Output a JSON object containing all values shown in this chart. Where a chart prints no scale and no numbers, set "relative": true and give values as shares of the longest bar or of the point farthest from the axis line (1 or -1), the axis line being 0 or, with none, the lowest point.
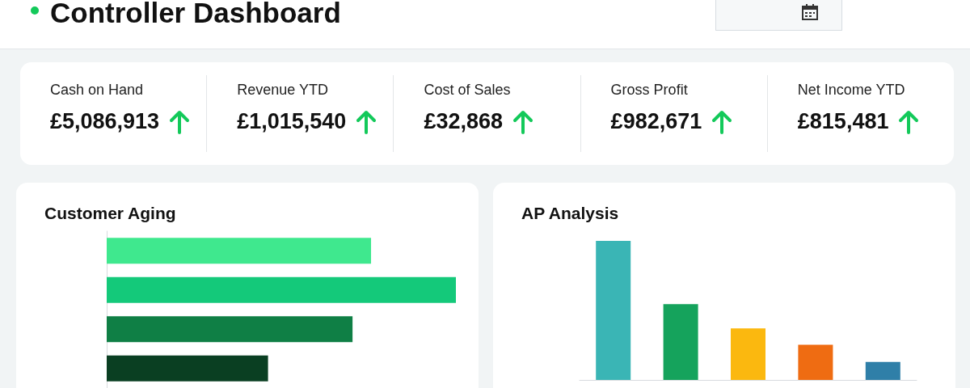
{
  "chart_data": [
    {
      "type": "other",
      "title": "Controller Dashboard",
      "annotations": [
        "Cash on Hand",
        "£5,086,913",
        "Revenue YTD",
        "£1,015,540",
        "Cost of Sales",
        "£32,868",
        "Gross Profit",
        "£982,671",
        "Net Income YTD",
        "£815,481"
      ]
    },
    {
      "type": "bar",
      "title": "Customer Aging",
      "orientation": "horizontal",
      "relative": true,
      "categories": [
        null,
        null,
        null,
        null
      ],
      "values": [
        0.757,
        1,
        0.704,
        0.462
      ],
      "colors": [
        "#3fe88e",
        "#14c97a",
        "#0f7f45",
        "#0a3f22"
      ]
    },
    {
      "type": "bar",
      "title": "AP Analysis",
      "relative": true,
      "categories": [
        null,
        null,
        null,
        null,
        null
      ],
      "values": [
        1,
        0.545,
        0.37,
        0.253,
        0.13
      ],
      "colors": [
        "#3ab5b5",
        "#15a35c",
        "#fbb80f",
        "#ef6c12",
        "#2f7fa8"
      ]
    }
  ]
}
